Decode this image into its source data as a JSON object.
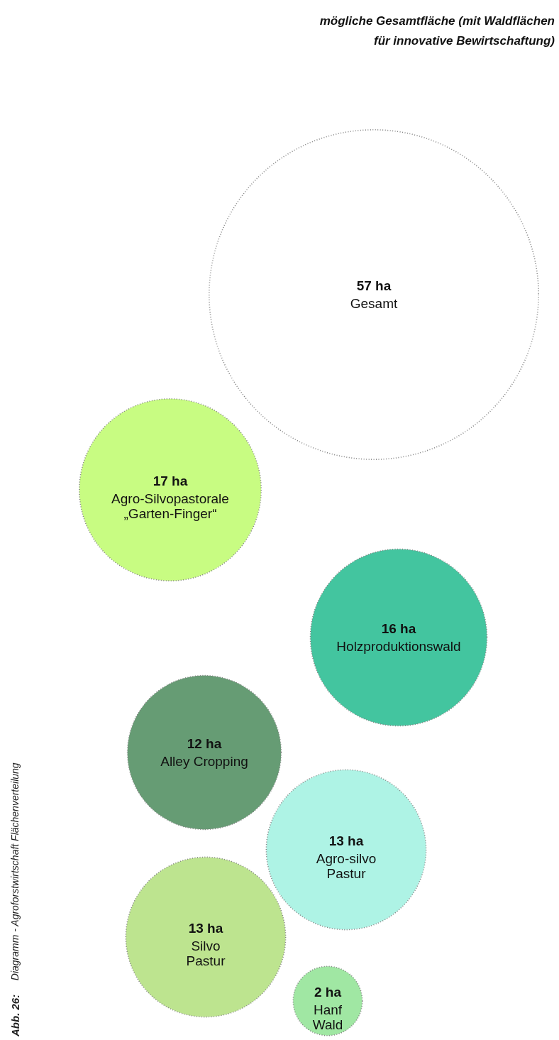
{
  "chart_data": {
    "type": "other",
    "title": "mögliche Gesamtfläche (mit Waldflächen für innovative Bewirtschaftung)",
    "categories": [
      "Gesamt",
      "Agro-Silvopastorale\n„Garten-Finger“",
      "Holzproduktionswald",
      "Alley Cropping",
      "Agro-silvo\nPastur",
      "Silvo\nPastur",
      "Hanf\nWald"
    ],
    "values": [
      57,
      17,
      16,
      12,
      13,
      13,
      2
    ],
    "value_labels": [
      "57 ha",
      "17 ha",
      "16 ha",
      "12 ha",
      "13 ha",
      "13 ha",
      "2 ha"
    ],
    "colors": [
      "#ffffff",
      "#c4fc78",
      "#34c197",
      "#5a9469",
      "#a8f2e3",
      "#b8e286",
      "#98e59c"
    ],
    "annotations": [
      "Abb. 26:",
      "Diagramm - Agroforstwirtschaft Flächenverteilung"
    ]
  }
}
